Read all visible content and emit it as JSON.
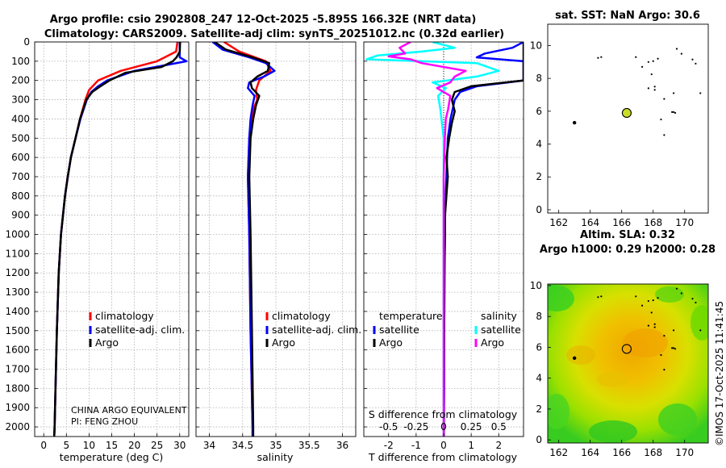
{
  "title": {
    "line1": "Argo profile: csio 2902808_247 12-Oct-2025 -5.895S 166.32E (NRT data)",
    "line2": "Climatology: CARS2009. Satellite-adj clim: synTS_20251012.nc (0.32d earlier)"
  },
  "colors": {
    "climatology": "#ff0000",
    "satellite": "#0000ff",
    "argo": "#000000",
    "sat_salinity": "#00ffff",
    "argo_salinity": "#ff00ff"
  },
  "chart_data": [
    {
      "type": "line",
      "panel": "temperature",
      "xlabel": "temperature (deg C)",
      "ylabel": "",
      "xlim": [
        -2,
        32
      ],
      "ylim": [
        2050,
        0
      ],
      "xticks": [
        "0",
        "5",
        "10",
        "15",
        "20",
        "25",
        "30"
      ],
      "yticks": [
        "0",
        "100",
        "200",
        "300",
        "400",
        "500",
        "600",
        "700",
        "800",
        "900",
        "1000",
        "1100",
        "1200",
        "1300",
        "1400",
        "1500",
        "1600",
        "1700",
        "1800",
        "1900",
        "2000"
      ],
      "grid": true,
      "legend": {
        "position": "bottom-right",
        "entries": [
          "climatology",
          "satellite-adj. clim.",
          "Argo"
        ]
      },
      "annotation": [
        "CHINA ARGO EQUIVALENT",
        "PI: FENG ZHOU"
      ],
      "series": [
        {
          "name": "climatology",
          "depth": [
            0,
            50,
            100,
            150,
            200,
            250,
            300,
            400,
            500,
            600,
            700,
            800,
            1000,
            1200,
            1500,
            1800,
            2000,
            2050
          ],
          "values": [
            29.5,
            29.2,
            25,
            17,
            12,
            10,
            9.2,
            8,
            7,
            6,
            5.3,
            4.7,
            3.8,
            3.3,
            2.9,
            2.6,
            2.4,
            2.3
          ]
        },
        {
          "name": "satellite-adj. clim.",
          "depth": [
            0,
            40,
            80,
            100,
            120,
            150,
            200,
            230,
            260,
            300,
            400,
            500,
            600,
            700,
            800,
            1000,
            1200,
            1500,
            1800,
            2000,
            2050
          ],
          "values": [
            30,
            30,
            30,
            31.5,
            27,
            20,
            14,
            12,
            10.5,
            9.5,
            8.1,
            7,
            6,
            5.3,
            4.7,
            3.8,
            3.3,
            2.9,
            2.6,
            2.4,
            2.3
          ]
        },
        {
          "name": "Argo",
          "depth": [
            0,
            50,
            80,
            100,
            130,
            160,
            200,
            230,
            260,
            300,
            400,
            500,
            600,
            700,
            800,
            1000,
            1200,
            1500,
            1800,
            2000,
            2050
          ],
          "values": [
            30.1,
            30,
            29.3,
            28.5,
            26,
            18,
            14.5,
            12.5,
            10.7,
            9.4,
            8,
            7,
            6,
            5.3,
            4.7,
            3.8,
            3.3,
            2.9,
            2.6,
            2.4,
            2.3
          ]
        }
      ]
    },
    {
      "type": "line",
      "panel": "salinity",
      "xlabel": "salinity",
      "ylabel": "",
      "xlim": [
        33.8,
        36.2
      ],
      "ylim": [
        2050,
        0
      ],
      "xticks": [
        "34",
        "34.5",
        "35",
        "35.5",
        "36"
      ],
      "grid": true,
      "legend": {
        "position": "bottom-right",
        "entries": [
          "climatology",
          "satellite-adj. clim.",
          "Argo"
        ]
      },
      "series": [
        {
          "name": "climatology",
          "depth": [
            0,
            50,
            100,
            150,
            200,
            250,
            300,
            350,
            400,
            500,
            700,
            1000,
            1500,
            2000,
            2050
          ],
          "values": [
            34.22,
            34.45,
            34.85,
            34.92,
            34.75,
            34.7,
            34.72,
            34.66,
            34.63,
            34.6,
            34.58,
            34.6,
            34.62,
            34.65,
            34.65
          ]
        },
        {
          "name": "satellite-adj. clim.",
          "depth": [
            0,
            40,
            80,
            110,
            150,
            180,
            210,
            240,
            280,
            330,
            400,
            500,
            700,
            1000,
            1500,
            2000,
            2050
          ],
          "values": [
            34.05,
            34.2,
            34.6,
            34.85,
            34.98,
            34.82,
            34.6,
            34.58,
            34.68,
            34.65,
            34.62,
            34.6,
            34.58,
            34.6,
            34.62,
            34.65,
            34.65
          ]
        },
        {
          "name": "Argo",
          "depth": [
            0,
            40,
            80,
            110,
            150,
            180,
            210,
            240,
            280,
            330,
            400,
            500,
            700,
            1000,
            1500,
            2000,
            2050
          ],
          "values": [
            34.08,
            34.25,
            34.65,
            34.9,
            34.88,
            34.72,
            34.62,
            34.64,
            34.75,
            34.7,
            34.66,
            34.62,
            34.6,
            34.62,
            34.64,
            34.66,
            34.66
          ]
        }
      ]
    },
    {
      "type": "line",
      "panel": "difference",
      "xlabel": "T difference from climatology",
      "xlabel2": "S difference from climatology",
      "xlim": [
        -2.9,
        2.9
      ],
      "ylim": [
        2050,
        0
      ],
      "xticks": [
        "-2",
        "-1",
        "0",
        "1",
        "2"
      ],
      "xticks2": [
        "-0.5",
        "-0.25",
        "0",
        "0.25",
        "0.5"
      ],
      "grid": true,
      "legend": {
        "position": "bottom",
        "groups": [
          {
            "title": "temperature",
            "entries": [
              "satellite",
              "Argo"
            ]
          },
          {
            "title": "salinity",
            "entries": [
              "satellite",
              "Argo"
            ]
          }
        ]
      },
      "series": [
        {
          "name": "temperature satellite",
          "depth": [
            0,
            30,
            60,
            80,
            100,
            120,
            160,
            200,
            230,
            260,
            300,
            400,
            500,
            700,
            900,
            1200,
            1500,
            1800,
            2000,
            2050
          ],
          "values": [
            2.9,
            2.5,
            1.5,
            1.2,
            2.9,
            2.9,
            2.9,
            2.9,
            1.2,
            0.6,
            0.4,
            0.25,
            0.15,
            0.1,
            0.05,
            0.03,
            0.02,
            0.02,
            0.01,
            0.01
          ]
        },
        {
          "name": "temperature Argo",
          "depth": [
            0,
            20,
            40,
            60,
            80,
            100,
            130,
            160,
            200,
            230,
            260,
            300,
            360,
            420,
            500,
            600,
            700,
            800,
            900,
            1000,
            1200,
            1500,
            1800,
            2000,
            2050
          ],
          "values": [
            2.9,
            2.9,
            2.9,
            2.9,
            2.9,
            2.9,
            2.9,
            2.9,
            2.9,
            1.0,
            0.4,
            0.3,
            0.4,
            0.3,
            0.2,
            0.1,
            0.15,
            0.1,
            0.05,
            0.05,
            0.03,
            0.02,
            0.01,
            0.01,
            0.01
          ]
        },
        {
          "name": "salinity satellite",
          "depth": [
            0,
            30,
            50,
            70,
            90,
            110,
            150,
            180,
            210,
            240,
            280,
            350,
            500,
            800,
            1200,
            1600,
            2000,
            2050
          ],
          "values": [
            -0.1,
            0.1,
            -0.2,
            -0.6,
            -0.7,
            0.3,
            0.5,
            0.3,
            -0.1,
            0.02,
            -0.05,
            -0.03,
            0.0,
            0.0,
            0.0,
            0.0,
            0.0,
            0.0
          ]
        },
        {
          "name": "salinity Argo",
          "depth": [
            0,
            30,
            60,
            75,
            90,
            110,
            150,
            180,
            210,
            240,
            280,
            350,
            400,
            500,
            700,
            1000,
            1500,
            2000,
            2050
          ],
          "values": [
            -0.3,
            -0.4,
            -0.35,
            -0.5,
            -0.3,
            -0.2,
            0.2,
            0.1,
            0.06,
            -0.06,
            0.06,
            0.04,
            0.02,
            0.01,
            0.0,
            0.0,
            0.0,
            0.0,
            0.0
          ]
        }
      ]
    },
    {
      "type": "scatter",
      "panel": "sst-map",
      "title": "sat. SST: NaN Argo: 30.6",
      "xlim": [
        161.3,
        171.5
      ],
      "ylim": [
        -0.2,
        11.3
      ],
      "xticks": [
        "162",
        "164",
        "166",
        "168",
        "170"
      ],
      "yticks": [
        "0",
        "2",
        "4",
        "6",
        "8",
        "10"
      ],
      "float_position": {
        "x": 166.32,
        "y": 5.895
      },
      "coast_points": {
        "x": [
          163.0,
          164.5,
          164.7,
          166.9,
          167.3,
          167.7,
          168.0,
          168.3,
          167.9,
          168.1,
          167.7,
          168.1,
          168.7,
          169.4,
          169.2,
          169.3,
          169.8,
          170.5,
          170.7,
          171.0,
          169.3,
          168.5,
          168.7,
          169.5
        ],
        "y": [
          5.3,
          9.25,
          9.3,
          9.3,
          8.7,
          9.0,
          9.05,
          9.2,
          8.25,
          7.5,
          7.4,
          7.3,
          6.75,
          5.9,
          5.95,
          5.95,
          9.5,
          9.15,
          8.9,
          7.1,
          7.1,
          5.5,
          4.55,
          9.8
        ]
      }
    },
    {
      "type": "heatmap",
      "panel": "sla-map",
      "title1": "Altim. SLA: 0.32",
      "title2": "Argo h1000: 0.29 h2000: 0.28",
      "xlim": [
        161.3,
        171.5
      ],
      "ylim": [
        -0.2,
        10.1
      ],
      "xticks": [
        "162",
        "164",
        "166",
        "168",
        "170"
      ],
      "yticks": [
        "0",
        "2",
        "4",
        "6",
        "8",
        "10"
      ],
      "float_position": {
        "x": 166.32,
        "y": 5.895
      },
      "colors": [
        "#22c81e",
        "#88e000",
        "#c8e800",
        "#f0d000",
        "#f0a800"
      ]
    }
  ],
  "timestamp": "©IMOS 17-Oct-2025 11:41:45"
}
